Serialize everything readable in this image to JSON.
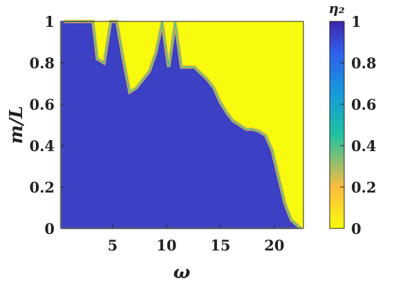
{
  "chart_data": {
    "type": "heatmap",
    "xlabel": "ω",
    "ylabel": "m/L",
    "colorbar_label": "η₂",
    "xlim": [
      0.2,
      22.7
    ],
    "ylim": [
      0,
      1
    ],
    "x_ticks": [
      5,
      10,
      15,
      20
    ],
    "x_tick_labels": [
      "5",
      "10",
      "15",
      "20"
    ],
    "y_ticks": [
      0,
      0.2,
      0.4,
      0.6,
      0.8,
      1
    ],
    "y_tick_labels": [
      "0",
      "0.2",
      "0.4",
      "0.6",
      "0.8",
      "1"
    ],
    "colorbar_ticks": [
      0,
      0.2,
      0.4,
      0.6,
      0.8,
      1
    ],
    "colorbar_tick_labels": [
      "0",
      "0.2",
      "0.4",
      "0.6",
      "0.8",
      "1"
    ],
    "colorbar_range": [
      0,
      1
    ],
    "colormap": [
      "#f9fb0e",
      "#fcbd3e",
      "#1fc2a0",
      "#149bd9",
      "#2f5fee",
      "#3e26a8"
    ],
    "regions": {
      "description_keys": [
        "high η₂ (≈1) below boundary, low η₂ (≈0) above"
      ],
      "boundary_omega": [
        0.5,
        2,
        3.2,
        3.6,
        4.2,
        4.8,
        5.4,
        6,
        6.6,
        7.2,
        7.8,
        8.4,
        9,
        9.6,
        10.2,
        10.8,
        11.4,
        12,
        12.6,
        13.2,
        13.8,
        14.4,
        15,
        15.6,
        16.2,
        16.8,
        17.4,
        18,
        18.6,
        19.2,
        19.8,
        20.4,
        21,
        21.6,
        22.5
      ],
      "boundary_m_over_L": [
        1,
        1,
        1,
        0.82,
        0.8,
        1,
        1,
        0.82,
        0.66,
        0.68,
        0.72,
        0.76,
        0.85,
        1,
        0.78,
        1,
        0.78,
        0.78,
        0.78,
        0.75,
        0.72,
        0.68,
        0.61,
        0.56,
        0.52,
        0.5,
        0.48,
        0.48,
        0.47,
        0.45,
        0.38,
        0.25,
        0.12,
        0.04,
        0
      ]
    }
  }
}
